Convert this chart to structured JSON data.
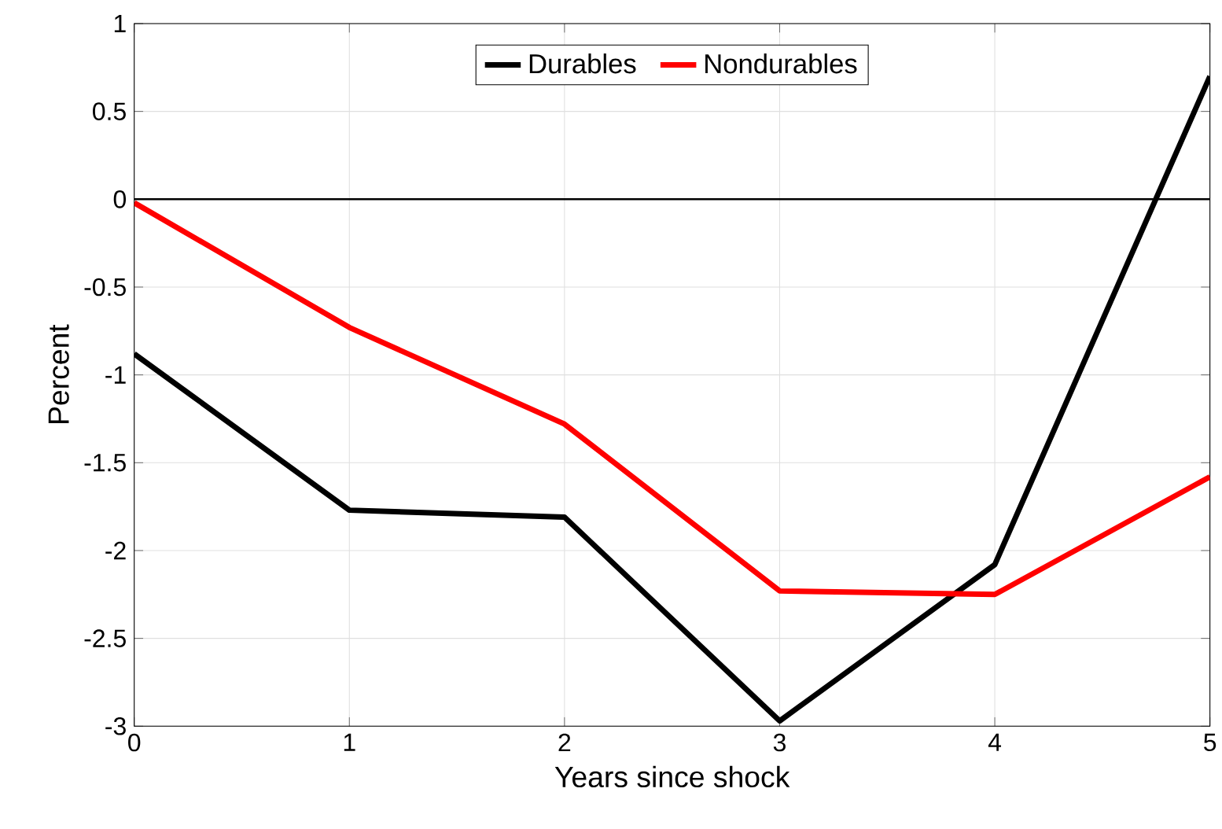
{
  "chart_data": {
    "type": "line",
    "xlabel": "Years since shock",
    "ylabel": "Percent",
    "x": [
      0,
      1,
      2,
      3,
      4,
      5
    ],
    "series": [
      {
        "name": "Durables",
        "color": "#000000",
        "values": [
          -0.88,
          -1.77,
          -1.81,
          -2.97,
          -2.08,
          0.7
        ]
      },
      {
        "name": "Nondurables",
        "color": "#ff0000",
        "values": [
          -0.02,
          -0.73,
          -1.28,
          -2.23,
          -2.25,
          -1.58
        ]
      }
    ],
    "xlim": [
      0,
      5
    ],
    "ylim": [
      -3,
      1
    ],
    "xticks": [
      0,
      1,
      2,
      3,
      4,
      5
    ],
    "yticks": [
      -3,
      -2.5,
      -2,
      -1.5,
      -1,
      -0.5,
      0,
      0.5,
      1
    ],
    "ref_lines": [
      {
        "axis": "y",
        "value": 0,
        "color": "#000000"
      }
    ],
    "grid": true,
    "legend": "top",
    "marker": "none",
    "line_style": "solid"
  }
}
